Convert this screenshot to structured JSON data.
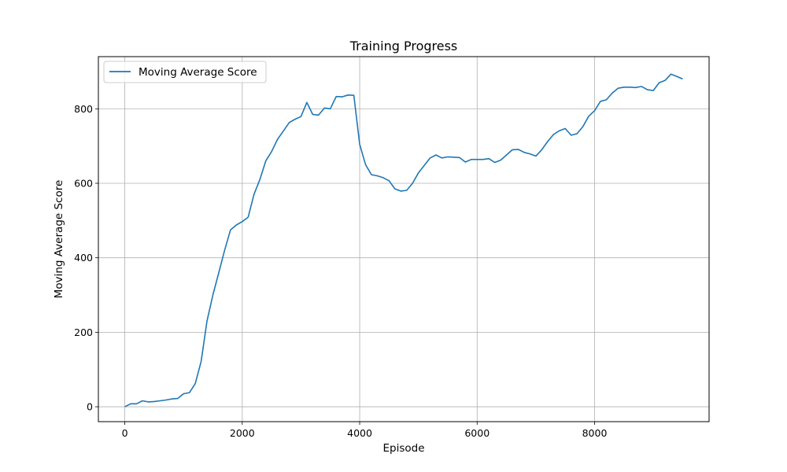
{
  "chart_data": {
    "type": "line",
    "title": "Training Progress",
    "xlabel": "Episode",
    "ylabel": "Moving Average Score",
    "xlim": [
      -450,
      9950
    ],
    "ylim": [
      -40,
      940
    ],
    "xticks": [
      0,
      2000,
      4000,
      6000,
      8000
    ],
    "yticks": [
      0,
      200,
      400,
      600,
      800
    ],
    "grid": true,
    "legend": {
      "position": "top-left",
      "entries": [
        "Moving Average Score"
      ]
    },
    "colors": {
      "series": "#1f77b4",
      "grid": "#b0b0b0",
      "frame": "#000000"
    },
    "series": [
      {
        "name": "Moving Average Score",
        "x": [
          0,
          100,
          200,
          300,
          400,
          500,
          600,
          700,
          800,
          900,
          1000,
          1100,
          1200,
          1300,
          1400,
          1500,
          1600,
          1700,
          1800,
          1900,
          2000,
          2100,
          2200,
          2300,
          2400,
          2500,
          2600,
          2700,
          2800,
          2900,
          3000,
          3100,
          3200,
          3300,
          3400,
          3500,
          3600,
          3700,
          3800,
          3900,
          4000,
          4100,
          4200,
          4300,
          4400,
          4500,
          4600,
          4700,
          4800,
          4900,
          5000,
          5100,
          5200,
          5300,
          5400,
          5500,
          5600,
          5700,
          5800,
          5900,
          6000,
          6100,
          6200,
          6300,
          6400,
          6500,
          6600,
          6700,
          6800,
          6900,
          7000,
          7100,
          7200,
          7300,
          7400,
          7500,
          7600,
          7700,
          7800,
          7900,
          8000,
          8100,
          8200,
          8300,
          8400,
          8500,
          8600,
          8700,
          8800,
          8900,
          9000,
          9100,
          9200,
          9300,
          9400,
          9500
        ],
        "y": [
          0,
          8,
          8,
          16,
          13,
          14,
          16,
          18,
          21,
          22,
          35,
          38,
          62,
          122,
          230,
          300,
          360,
          420,
          475,
          488,
          497,
          509,
          570,
          610,
          660,
          685,
          718,
          740,
          763,
          772,
          779,
          817,
          785,
          783,
          802,
          800,
          833,
          832,
          837,
          836,
          705,
          650,
          623,
          620,
          615,
          607,
          585,
          579,
          581,
          600,
          628,
          648,
          668,
          676,
          668,
          671,
          670,
          669,
          657,
          664,
          664,
          664,
          666,
          656,
          662,
          676,
          690,
          691,
          683,
          679,
          673,
          690,
          712,
          731,
          741,
          747,
          729,
          733,
          752,
          780,
          795,
          820,
          824,
          842,
          855,
          858,
          858,
          857,
          860,
          851,
          849,
          870,
          876,
          893,
          887,
          880
        ]
      }
    ]
  }
}
